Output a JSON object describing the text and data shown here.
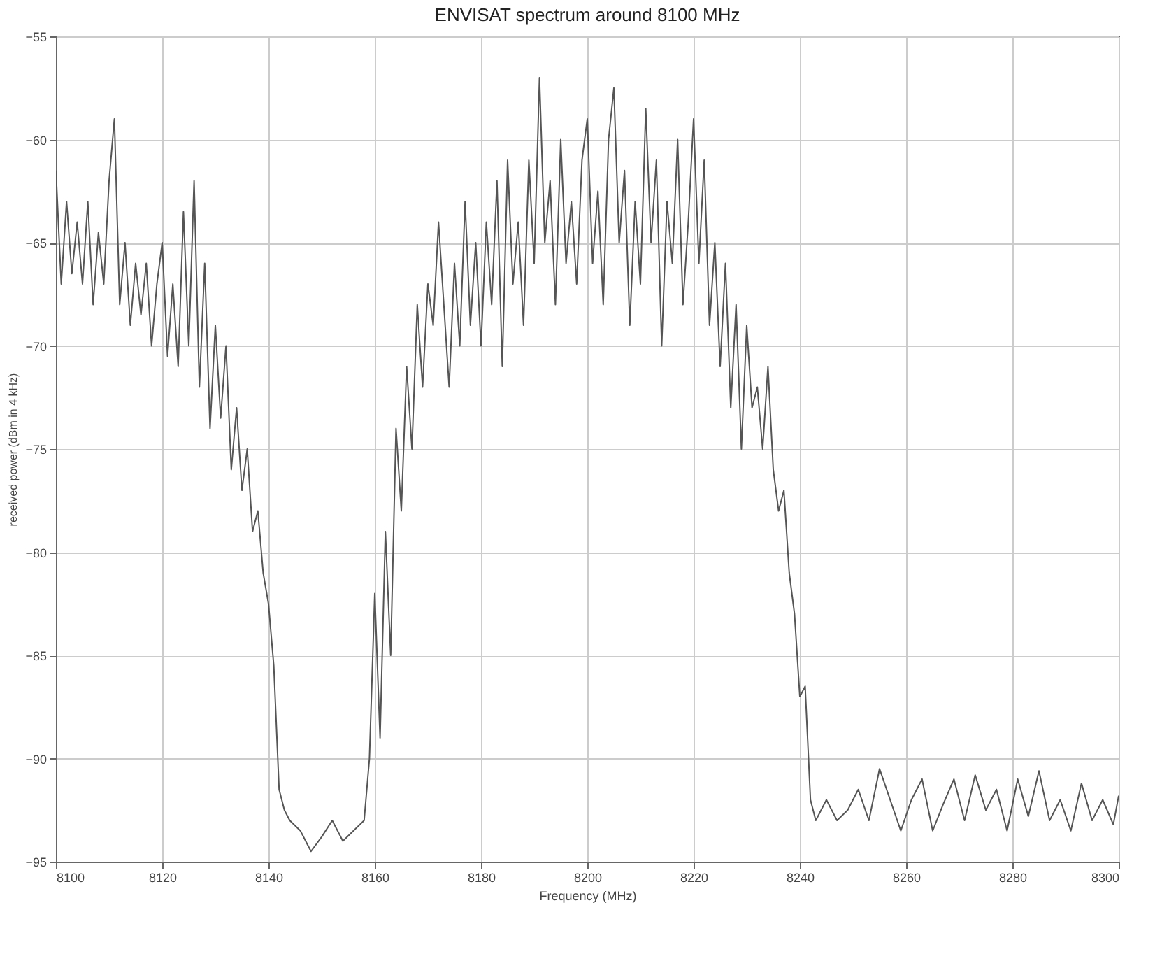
{
  "chart_data": {
    "type": "line",
    "title": "ENVISAT spectrum around 8100 MHz",
    "xlabel": "Frequency (MHz)",
    "ylabel": "received power (dBm in 4 kHz)",
    "xlim": [
      8100,
      8300
    ],
    "xticks": [
      8100,
      8120,
      8140,
      8160,
      8180,
      8200,
      8220,
      8240,
      8260,
      8280,
      8300
    ],
    "ylim": [
      -95,
      -55
    ],
    "yticks": [
      -95,
      -90,
      -85,
      -80,
      -75,
      -70,
      -65,
      -60,
      -55
    ],
    "grid": true,
    "series": [
      {
        "color": "#555555",
        "x": [
          8100,
          8101,
          8102,
          8103,
          8104,
          8105,
          8106,
          8107,
          8108,
          8109,
          8110,
          8111,
          8112,
          8113,
          8114,
          8115,
          8116,
          8117,
          8118,
          8119,
          8120,
          8121,
          8122,
          8123,
          8124,
          8125,
          8126,
          8127,
          8128,
          8129,
          8130,
          8131,
          8132,
          8133,
          8134,
          8135,
          8136,
          8137,
          8138,
          8139,
          8140,
          8141,
          8142,
          8143,
          8144,
          8146,
          8148,
          8150,
          8152,
          8154,
          8156,
          8158,
          8159,
          8160,
          8161,
          8162,
          8163,
          8164,
          8165,
          8166,
          8167,
          8168,
          8169,
          8170,
          8171,
          8172,
          8173,
          8174,
          8175,
          8176,
          8177,
          8178,
          8179,
          8180,
          8181,
          8182,
          8183,
          8184,
          8185,
          8186,
          8187,
          8188,
          8189,
          8190,
          8191,
          8192,
          8193,
          8194,
          8195,
          8196,
          8197,
          8198,
          8199,
          8200,
          8201,
          8202,
          8203,
          8204,
          8205,
          8206,
          8207,
          8208,
          8209,
          8210,
          8211,
          8212,
          8213,
          8214,
          8215,
          8216,
          8217,
          8218,
          8219,
          8220,
          8221,
          8222,
          8223,
          8224,
          8225,
          8226,
          8227,
          8228,
          8229,
          8230,
          8231,
          8232,
          8233,
          8234,
          8235,
          8236,
          8237,
          8238,
          8239,
          8240,
          8241,
          8242,
          8243,
          8245,
          8247,
          8249,
          8251,
          8253,
          8255,
          8257,
          8259,
          8261,
          8263,
          8265,
          8267,
          8269,
          8271,
          8273,
          8275,
          8277,
          8279,
          8281,
          8283,
          8285,
          8287,
          8289,
          8291,
          8293,
          8295,
          8297,
          8299,
          8300
        ],
        "values": [
          -61.5,
          -67,
          -63,
          -66.5,
          -64,
          -67,
          -63,
          -68,
          -64.5,
          -67,
          -62,
          -59,
          -68,
          -65,
          -69,
          -66,
          -68.5,
          -66,
          -70,
          -67,
          -65,
          -70.5,
          -67,
          -71,
          -63.5,
          -70,
          -62,
          -72,
          -66,
          -74,
          -69,
          -73.5,
          -70,
          -76,
          -73,
          -77,
          -75,
          -79,
          -78,
          -81,
          -82.5,
          -85.5,
          -91.5,
          -92.5,
          -93,
          -93.5,
          -94.5,
          -93.8,
          -93,
          -94,
          -93.5,
          -93,
          -90,
          -82,
          -89,
          -79,
          -85,
          -74,
          -78,
          -71,
          -75,
          -68,
          -72,
          -67,
          -69,
          -64,
          -68,
          -72,
          -66,
          -70,
          -63,
          -69,
          -65,
          -70,
          -64,
          -68,
          -62,
          -71,
          -61,
          -67,
          -64,
          -69,
          -61,
          -66,
          -57,
          -65,
          -62,
          -68,
          -60,
          -66,
          -63,
          -67,
          -61,
          -59,
          -66,
          -62.5,
          -68,
          -60,
          -57.5,
          -65,
          -61.5,
          -69,
          -63,
          -67,
          -58.5,
          -65,
          -61,
          -70,
          -63,
          -66,
          -60,
          -68,
          -64,
          -59,
          -66,
          -61,
          -69,
          -65,
          -71,
          -66,
          -73,
          -68,
          -75,
          -69,
          -73,
          -72,
          -75,
          -71,
          -76,
          -78,
          -77,
          -81,
          -83,
          -87,
          -86.5,
          -92,
          -93,
          -92,
          -93,
          -92.5,
          -91.5,
          -93,
          -90.5,
          -92,
          -93.5,
          -92,
          -91,
          -93.5,
          -92.2,
          -91,
          -93,
          -90.8,
          -92.5,
          -91.5,
          -93.5,
          -91,
          -92.8,
          -90.6,
          -93,
          -92,
          -93.5,
          -91.2,
          -93,
          -92,
          -93.2,
          -91.8
        ]
      }
    ]
  }
}
